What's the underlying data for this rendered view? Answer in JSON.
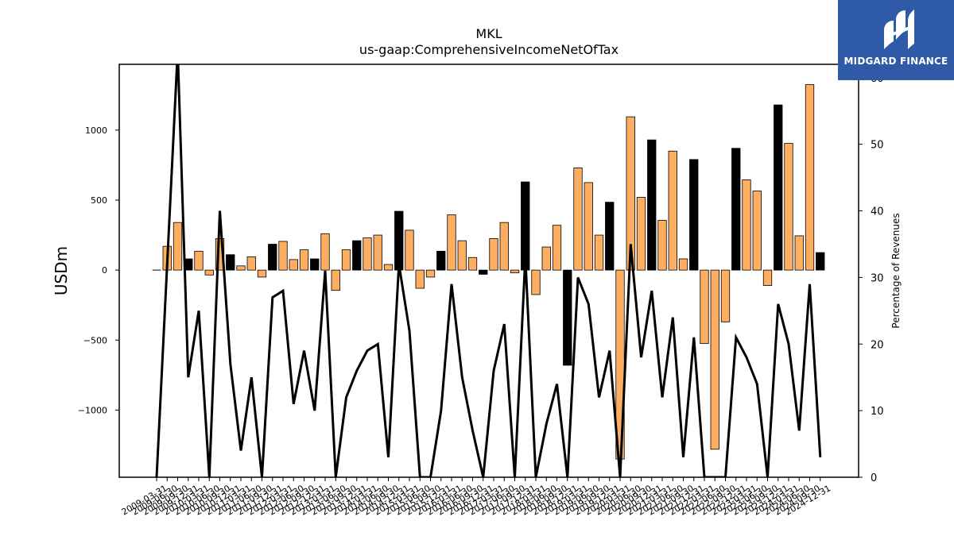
{
  "chart_data": {
    "type": "bar",
    "title": "MKL",
    "subtitle": "us-gaap:ComprehensiveIncomeNetOfTax",
    "ylabel": "USDm",
    "y2label": "Percentage of Revenues",
    "ylim": [
      -1480,
      1470
    ],
    "y2lim": [
      0,
      62
    ],
    "yticks": [
      -1000,
      -500,
      0,
      500,
      1000
    ],
    "y2ticks": [
      0,
      10,
      20,
      30,
      40,
      50,
      60
    ],
    "categories": [
      "2009-03-31",
      "2009-06-30",
      "2009-09-30",
      "2009-12-31",
      "2010-03-31",
      "2010-06-30",
      "2010-09-30",
      "2010-12-31",
      "2011-03-31",
      "2011-06-30",
      "2011-09-30",
      "2011-12-31",
      "2012-03-31",
      "2012-06-30",
      "2012-09-30",
      "2012-12-31",
      "2013-03-31",
      "2013-06-30",
      "2013-09-30",
      "2013-12-31",
      "2014-03-31",
      "2014-06-30",
      "2014-09-30",
      "2014-12-31",
      "2015-03-31",
      "2015-06-30",
      "2015-09-30",
      "2015-12-31",
      "2016-03-31",
      "2016-06-30",
      "2016-09-30",
      "2016-12-31",
      "2017-03-31",
      "2017-06-30",
      "2017-09-30",
      "2017-12-31",
      "2018-03-31",
      "2018-06-30",
      "2018-09-30",
      "2018-12-31",
      "2019-03-31",
      "2019-06-30",
      "2019-09-30",
      "2019-12-31",
      "2020-03-31",
      "2020-06-30",
      "2020-09-30",
      "2020-12-31",
      "2021-03-31",
      "2021-06-30",
      "2021-09-30",
      "2021-12-31",
      "2022-03-31",
      "2022-06-30",
      "2022-09-30",
      "2022-12-31",
      "2023-03-31",
      "2023-06-30",
      "2023-09-30",
      "2023-12-31",
      "2024-03-31",
      "2024-06-30",
      "2024-09-30",
      "2024-12-31"
    ],
    "values": [
      0,
      170,
      340,
      80,
      135,
      -35,
      225,
      110,
      30,
      95,
      -50,
      185,
      205,
      75,
      145,
      80,
      260,
      -145,
      145,
      210,
      230,
      250,
      40,
      420,
      285,
      -130,
      -50,
      135,
      395,
      210,
      90,
      -30,
      225,
      340,
      -20,
      630,
      -175,
      165,
      320,
      -680,
      730,
      625,
      250,
      485,
      -1350,
      1095,
      520,
      930,
      355,
      850,
      80,
      790,
      -525,
      -1280,
      -370,
      870,
      645,
      565,
      -110,
      1180,
      905,
      245,
      1325,
      125
    ],
    "bar_colors": [
      "black",
      "orange",
      "orange",
      "black",
      "orange",
      "orange",
      "orange",
      "black",
      "orange",
      "orange",
      "orange",
      "black",
      "orange",
      "orange",
      "orange",
      "black",
      "orange",
      "orange",
      "orange",
      "black",
      "orange",
      "orange",
      "orange",
      "black",
      "orange",
      "orange",
      "orange",
      "black",
      "orange",
      "orange",
      "orange",
      "black",
      "orange",
      "orange",
      "orange",
      "black",
      "orange",
      "orange",
      "orange",
      "black",
      "orange",
      "orange",
      "orange",
      "black",
      "orange",
      "orange",
      "orange",
      "black",
      "orange",
      "orange",
      "orange",
      "black",
      "orange",
      "orange",
      "orange",
      "black",
      "orange",
      "orange",
      "orange",
      "black",
      "orange",
      "orange",
      "orange",
      "black"
    ],
    "line_values": [
      0,
      32,
      64,
      15,
      25,
      0,
      40,
      17,
      4,
      15,
      0,
      27,
      28,
      11,
      19,
      10,
      31,
      0,
      12,
      16,
      19,
      20,
      3,
      32,
      22,
      0,
      0,
      10,
      29,
      15,
      7,
      0,
      16,
      23,
      0,
      33,
      0,
      8,
      14,
      0,
      30,
      26,
      12,
      19,
      0,
      35,
      18,
      28,
      12,
      24,
      3,
      21,
      0,
      0,
      0,
      21,
      18,
      14,
      0,
      26,
      20,
      7,
      29,
      3
    ],
    "grid": false,
    "legend": "none",
    "colors": {
      "orange": "#fdae61",
      "black": "#000000",
      "line": "#000000",
      "bar_edge": "#000000"
    }
  },
  "logo": {
    "text": "MIDGARD FINANCE",
    "bg": "#2f5aa8"
  }
}
